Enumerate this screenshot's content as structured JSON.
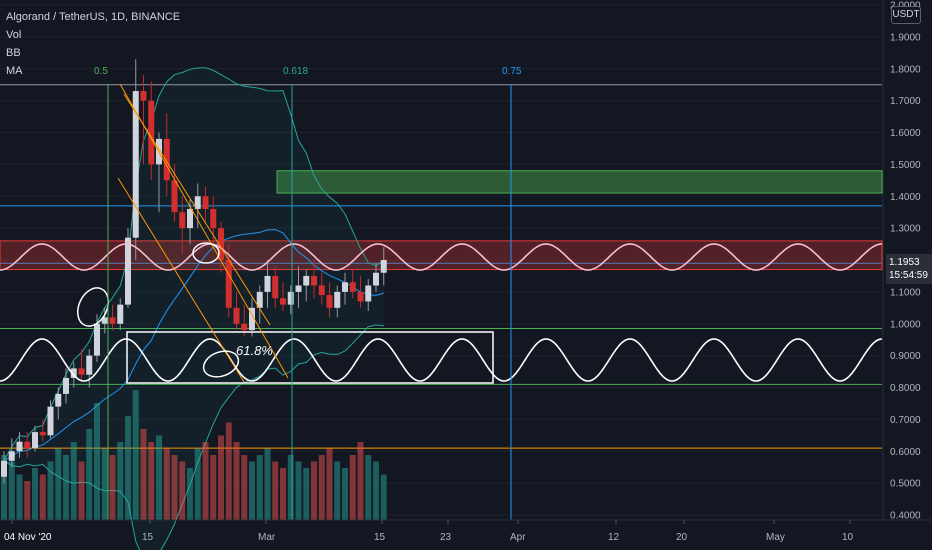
{
  "header": {
    "symbol": "Algorand / TetherUS, 1D, BINANCE",
    "indicators": [
      "Vol",
      "BB",
      "MA"
    ]
  },
  "price_axis": {
    "unit": "USDT",
    "current_price": "1.1953",
    "countdown": "15:54:59"
  },
  "fib_labels": [
    {
      "text": "0.5",
      "color": "#4caf50",
      "date_index": 0
    },
    {
      "text": "0.618",
      "color": "#26a69a",
      "date_index": 1
    },
    {
      "text": "0.75",
      "color": "#2196f3",
      "date_index": 2
    }
  ],
  "annotation": "61.8%",
  "chart_data": {
    "type": "candlestick",
    "title": "Algorand / TetherUS, 1D, BINANCE",
    "ylim": [
      0.4,
      2.0
    ],
    "y_ticks": [
      "0.4000",
      "0.5000",
      "0.6000",
      "0.7000",
      "0.8000",
      "0.9000",
      "1.0000",
      "1.1000",
      "1.2000",
      "1.3000",
      "1.4000",
      "1.5000",
      "1.6000",
      "1.7000",
      "1.8000",
      "1.9000",
      "2.0000"
    ],
    "x_ticks": [
      "04 Nov '20",
      "15",
      "Mar",
      "15",
      "23",
      "Apr",
      "12",
      "20",
      "May",
      "10"
    ],
    "candles": [
      {
        "o": 0.52,
        "h": 0.6,
        "l": 0.5,
        "c": 0.57
      },
      {
        "o": 0.57,
        "h": 0.64,
        "l": 0.55,
        "c": 0.6
      },
      {
        "o": 0.6,
        "h": 0.66,
        "l": 0.58,
        "c": 0.63
      },
      {
        "o": 0.63,
        "h": 0.66,
        "l": 0.58,
        "c": 0.61
      },
      {
        "o": 0.61,
        "h": 0.68,
        "l": 0.6,
        "c": 0.66
      },
      {
        "o": 0.66,
        "h": 0.7,
        "l": 0.63,
        "c": 0.65
      },
      {
        "o": 0.65,
        "h": 0.76,
        "l": 0.64,
        "c": 0.74
      },
      {
        "o": 0.74,
        "h": 0.8,
        "l": 0.7,
        "c": 0.78
      },
      {
        "o": 0.78,
        "h": 0.86,
        "l": 0.75,
        "c": 0.83
      },
      {
        "o": 0.83,
        "h": 0.88,
        "l": 0.8,
        "c": 0.86
      },
      {
        "o": 0.86,
        "h": 0.92,
        "l": 0.82,
        "c": 0.84
      },
      {
        "o": 0.84,
        "h": 0.92,
        "l": 0.8,
        "c": 0.9
      },
      {
        "o": 0.9,
        "h": 1.03,
        "l": 0.88,
        "c": 1.0
      },
      {
        "o": 1.0,
        "h": 1.05,
        "l": 0.97,
        "c": 1.02
      },
      {
        "o": 1.02,
        "h": 1.06,
        "l": 0.98,
        "c": 1.0
      },
      {
        "o": 1.0,
        "h": 1.08,
        "l": 0.98,
        "c": 1.06
      },
      {
        "o": 1.06,
        "h": 1.3,
        "l": 1.05,
        "c": 1.27
      },
      {
        "o": 1.27,
        "h": 1.83,
        "l": 1.2,
        "c": 1.73
      },
      {
        "o": 1.73,
        "h": 1.78,
        "l": 1.5,
        "c": 1.7
      },
      {
        "o": 1.7,
        "h": 1.76,
        "l": 1.45,
        "c": 1.5
      },
      {
        "o": 1.5,
        "h": 1.6,
        "l": 1.35,
        "c": 1.58
      },
      {
        "o": 1.58,
        "h": 1.66,
        "l": 1.4,
        "c": 1.45
      },
      {
        "o": 1.45,
        "h": 1.5,
        "l": 1.32,
        "c": 1.35
      },
      {
        "o": 1.35,
        "h": 1.4,
        "l": 1.22,
        "c": 1.3
      },
      {
        "o": 1.3,
        "h": 1.39,
        "l": 1.25,
        "c": 1.36
      },
      {
        "o": 1.36,
        "h": 1.44,
        "l": 1.3,
        "c": 1.4
      },
      {
        "o": 1.4,
        "h": 1.43,
        "l": 1.32,
        "c": 1.36
      },
      {
        "o": 1.36,
        "h": 1.4,
        "l": 1.24,
        "c": 1.3
      },
      {
        "o": 1.3,
        "h": 1.32,
        "l": 1.16,
        "c": 1.2
      },
      {
        "o": 1.2,
        "h": 1.25,
        "l": 1.02,
        "c": 1.05
      },
      {
        "o": 1.05,
        "h": 1.1,
        "l": 0.98,
        "c": 1.0
      },
      {
        "o": 1.0,
        "h": 1.06,
        "l": 0.96,
        "c": 0.98
      },
      {
        "o": 0.98,
        "h": 1.08,
        "l": 0.96,
        "c": 1.05
      },
      {
        "o": 1.05,
        "h": 1.12,
        "l": 1.0,
        "c": 1.1
      },
      {
        "o": 1.1,
        "h": 1.2,
        "l": 1.05,
        "c": 1.15
      },
      {
        "o": 1.15,
        "h": 1.18,
        "l": 1.05,
        "c": 1.08
      },
      {
        "o": 1.08,
        "h": 1.13,
        "l": 1.04,
        "c": 1.06
      },
      {
        "o": 1.06,
        "h": 1.12,
        "l": 1.03,
        "c": 1.1
      },
      {
        "o": 1.1,
        "h": 1.18,
        "l": 1.05,
        "c": 1.12
      },
      {
        "o": 1.12,
        "h": 1.17,
        "l": 1.07,
        "c": 1.15
      },
      {
        "o": 1.15,
        "h": 1.2,
        "l": 1.08,
        "c": 1.12
      },
      {
        "o": 1.12,
        "h": 1.16,
        "l": 1.06,
        "c": 1.09
      },
      {
        "o": 1.09,
        "h": 1.13,
        "l": 1.02,
        "c": 1.05
      },
      {
        "o": 1.05,
        "h": 1.12,
        "l": 1.02,
        "c": 1.1
      },
      {
        "o": 1.1,
        "h": 1.16,
        "l": 1.06,
        "c": 1.13
      },
      {
        "o": 1.13,
        "h": 1.17,
        "l": 1.08,
        "c": 1.1
      },
      {
        "o": 1.1,
        "h": 1.15,
        "l": 1.05,
        "c": 1.07
      },
      {
        "o": 1.07,
        "h": 1.14,
        "l": 1.04,
        "c": 1.12
      },
      {
        "o": 1.12,
        "h": 1.19,
        "l": 1.1,
        "c": 1.16
      },
      {
        "o": 1.16,
        "h": 1.24,
        "l": 1.12,
        "c": 1.2
      }
    ],
    "volume": [
      0.5,
      0.45,
      0.35,
      0.3,
      0.4,
      0.35,
      0.45,
      0.55,
      0.5,
      0.6,
      0.45,
      0.7,
      0.9,
      0.55,
      0.5,
      0.6,
      0.8,
      1.0,
      0.7,
      0.6,
      0.65,
      0.55,
      0.5,
      0.45,
      0.4,
      0.55,
      0.6,
      0.5,
      0.65,
      0.75,
      0.6,
      0.5,
      0.45,
      0.5,
      0.55,
      0.45,
      0.4,
      0.5,
      0.45,
      0.4,
      0.45,
      0.5,
      0.55,
      0.45,
      0.4,
      0.5,
      0.6,
      0.5,
      0.45,
      0.35
    ],
    "horizontal_levels": [
      {
        "value": 1.75,
        "color": "#9598a1"
      },
      {
        "value": 1.37,
        "color": "#2196f3"
      },
      {
        "value": 1.19,
        "color": "#2196f3"
      },
      {
        "value": 0.985,
        "color": "#4caf50"
      },
      {
        "value": 0.81,
        "color": "#4caf50"
      },
      {
        "value": 0.61,
        "color": "#ff9800"
      }
    ],
    "zones": [
      {
        "name": "resistance",
        "y_from": 1.41,
        "y_to": 1.48,
        "color": "#4caf50"
      },
      {
        "name": "supply",
        "y_from": 1.17,
        "y_to": 1.26,
        "color": "#e53935"
      }
    ]
  }
}
